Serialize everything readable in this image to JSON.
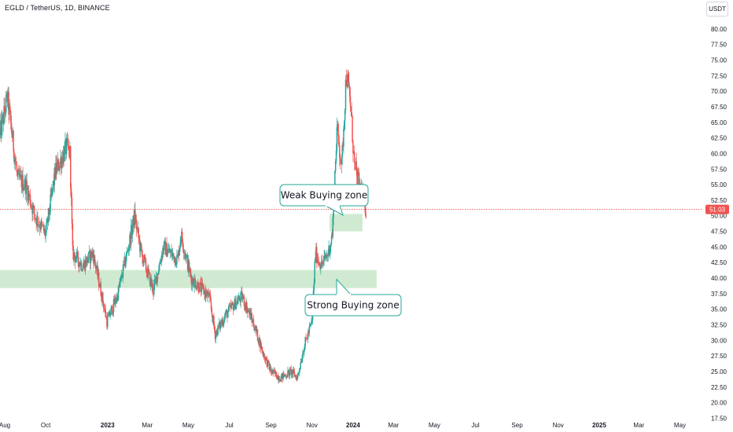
{
  "header": {
    "symbol_line": "EGLD / TetherUS, 1D, BINANCE",
    "currency": "USDT"
  },
  "colors": {
    "up": "#26a69a",
    "down": "#ef5350",
    "zone_fill": "#c8e6c9",
    "callout_border": "#26a69a",
    "price_line": "#ef5350",
    "price_tag": "#ef5350"
  },
  "chart_data": {
    "type": "candlestick",
    "y_axis": {
      "position": "right",
      "range": [
        16.3,
        82.5
      ],
      "ticks": [
        "80.00",
        "77.50",
        "75.00",
        "72.50",
        "70.00",
        "67.50",
        "65.00",
        "62.50",
        "60.00",
        "57.50",
        "55.00",
        "52.50",
        "50.00",
        "47.50",
        "45.00",
        "42.50",
        "40.00",
        "37.50",
        "35.00",
        "32.50",
        "30.00",
        "27.50",
        "25.00",
        "22.50",
        "20.00",
        "17.50"
      ]
    },
    "x_axis": {
      "labels": [
        "Aug",
        "Oct",
        "2023",
        "Mar",
        "May",
        "Jul",
        "Sep",
        "Nov",
        "2024",
        "Mar",
        "May",
        "Jul",
        "Sep",
        "Nov",
        "2025",
        "Mar",
        "May"
      ],
      "bold": [
        "2023",
        "2024",
        "2025"
      ]
    },
    "current_price": {
      "value": 51.03,
      "label": "51.03"
    },
    "zones": [
      {
        "name": "weak-zone",
        "low": 47.5,
        "high": 50.3,
        "from": "2023-11-27",
        "to": "2024-01-15"
      },
      {
        "name": "strong-zone",
        "low": 38.4,
        "high": 41.3,
        "from": "2022-07-25",
        "to": "2024-02-05"
      }
    ],
    "annotations": [
      {
        "text": "Weak Buying zone",
        "target_price": 50.1
      },
      {
        "text": "Strong Buying zone",
        "target_price": 39.8
      }
    ],
    "anchors": [
      {
        "date": "2022-07-25",
        "price": 63
      },
      {
        "date": "2022-08-05",
        "price": 69
      },
      {
        "date": "2022-08-20",
        "price": 56
      },
      {
        "date": "2022-09-01",
        "price": 55
      },
      {
        "date": "2022-09-15",
        "price": 50
      },
      {
        "date": "2022-10-01",
        "price": 47
      },
      {
        "date": "2022-10-15",
        "price": 57
      },
      {
        "date": "2022-11-01",
        "price": 61
      },
      {
        "date": "2022-11-06",
        "price": 60
      },
      {
        "date": "2022-11-10",
        "price": 44
      },
      {
        "date": "2022-11-25",
        "price": 42
      },
      {
        "date": "2022-12-10",
        "price": 44
      },
      {
        "date": "2022-12-20",
        "price": 39
      },
      {
        "date": "2022-12-31",
        "price": 33
      },
      {
        "date": "2023-01-15",
        "price": 37
      },
      {
        "date": "2023-02-01",
        "price": 45
      },
      {
        "date": "2023-02-10",
        "price": 50
      },
      {
        "date": "2023-02-20",
        "price": 44
      },
      {
        "date": "2023-03-10",
        "price": 38
      },
      {
        "date": "2023-03-25",
        "price": 45
      },
      {
        "date": "2023-04-15",
        "price": 43
      },
      {
        "date": "2023-04-20",
        "price": 47
      },
      {
        "date": "2023-05-05",
        "price": 40
      },
      {
        "date": "2023-06-01",
        "price": 37
      },
      {
        "date": "2023-06-10",
        "price": 31
      },
      {
        "date": "2023-06-25",
        "price": 34
      },
      {
        "date": "2023-07-10",
        "price": 36
      },
      {
        "date": "2023-07-20",
        "price": 37
      },
      {
        "date": "2023-08-05",
        "price": 33
      },
      {
        "date": "2023-08-20",
        "price": 28
      },
      {
        "date": "2023-09-01",
        "price": 25
      },
      {
        "date": "2023-09-15",
        "price": 24
      },
      {
        "date": "2023-10-01",
        "price": 25
      },
      {
        "date": "2023-10-10",
        "price": 24
      },
      {
        "date": "2023-10-20",
        "price": 29
      },
      {
        "date": "2023-11-01",
        "price": 33
      },
      {
        "date": "2023-11-06",
        "price": 44
      },
      {
        "date": "2023-11-15",
        "price": 42
      },
      {
        "date": "2023-11-25",
        "price": 44
      },
      {
        "date": "2023-12-01",
        "price": 47
      },
      {
        "date": "2023-12-08",
        "price": 64
      },
      {
        "date": "2023-12-15",
        "price": 58
      },
      {
        "date": "2023-12-22",
        "price": 73
      },
      {
        "date": "2023-12-28",
        "price": 68
      },
      {
        "date": "2024-01-03",
        "price": 58
      },
      {
        "date": "2024-01-10",
        "price": 55
      },
      {
        "date": "2024-01-16",
        "price": 53
      },
      {
        "date": "2024-01-20",
        "price": 51
      }
    ]
  }
}
